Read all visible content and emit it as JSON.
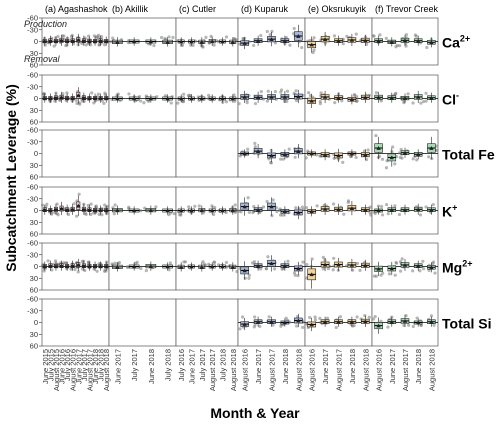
{
  "chart_data": {
    "type": "box",
    "ylabel": "Subcatchment Leverage (%)",
    "xlabel": "Month & Year",
    "yticks": [
      -60,
      -30,
      0,
      30,
      60
    ],
    "ylim": [
      -60,
      60
    ],
    "y_inverted": true,
    "grid": false,
    "annotations": {
      "top": "Production",
      "bottom": "Removal"
    },
    "columns": [
      {
        "title": "(a) Agashashok",
        "x_labels": [
          "June 2015",
          "July 2015",
          "August 2015",
          "June 2016",
          "July 2016",
          "August 2016",
          "June 2017",
          "July 2017",
          "August 2017",
          "June 2018",
          "July 2018",
          "August 2018"
        ]
      },
      {
        "title": "(b) Akillik",
        "x_labels": [
          "June 2017",
          "July 2017",
          "June 2018",
          "July 2018"
        ]
      },
      {
        "title": "(c) Cutler",
        "x_labels": [
          "July 2016",
          "June 2017",
          "July 2017",
          "August 2017",
          "July 2018",
          "August 2018"
        ]
      },
      {
        "title": "(d) Kuparuk",
        "x_labels": [
          "August 2016",
          "June 2017",
          "August 2017",
          "June 2018",
          "August 2018"
        ]
      },
      {
        "title": "(e) Oksrukuyik",
        "x_labels": [
          "August 2016",
          "June 2017",
          "August 2017",
          "June 2018",
          "August 2018"
        ]
      },
      {
        "title": "(f) Trevor Creek",
        "x_labels": [
          "August 2016",
          "June 2017",
          "August 2017",
          "June 2018",
          "August 2018"
        ]
      }
    ],
    "rows": [
      {
        "label": "Ca",
        "sup": "2+"
      },
      {
        "label": "Cl",
        "sup": "-"
      },
      {
        "label": "Total Fe",
        "sup": ""
      },
      {
        "label": "K",
        "sup": "+"
      },
      {
        "label": "Mg",
        "sup": "2+"
      },
      {
        "label": "Total Si",
        "sup": ""
      }
    ],
    "colors": {
      "Agashashok": "#f2c9d0",
      "Akillik": "#d6ecd9",
      "Cutler": "#ffffff",
      "Kuparuk": "#a8b8da",
      "Oksrukuyik": "#f4d39a",
      "Trevor Creek": "#a8dcb5"
    },
    "medians": {
      "Ca": {
        "Agashashok": [
          -1,
          -2,
          -1,
          -3,
          -1,
          -2,
          -4,
          -2,
          -1,
          -1,
          -2,
          -1
        ],
        "Akillik": [
          1,
          0,
          0,
          1
        ],
        "Cutler": [
          0,
          0,
          1,
          -1,
          0,
          1
        ],
        "Kuparuk": [
          4,
          -2,
          -6,
          -2,
          -14
        ],
        "Oksrukuyik": [
          8,
          -6,
          -2,
          -4,
          -3
        ],
        "Trevor Creek": [
          -2,
          1,
          -3,
          -2,
          2
        ]
      },
      "Cl": {
        "Agashashok": [
          -1,
          -1,
          -2,
          -3,
          -1,
          -1,
          -8,
          -2,
          -1,
          -1,
          -1,
          -1
        ],
        "Akillik": [
          0,
          0,
          0,
          0
        ],
        "Cutler": [
          0,
          0,
          0,
          0,
          0,
          0
        ],
        "Kuparuk": [
          -4,
          -3,
          -4,
          -4,
          -5
        ],
        "Oksrukuyik": [
          6,
          -4,
          -2,
          2,
          -3
        ],
        "Trevor Creek": [
          -3,
          -2,
          -1,
          -4,
          -2
        ]
      },
      "Total Fe": {
        "Agashashok": [],
        "Akillik": [],
        "Cutler": [],
        "Kuparuk": [
          0,
          -6,
          5,
          2,
          -6
        ],
        "Oksrukuyik": [
          0,
          3,
          5,
          0,
          3
        ],
        "Trevor Creek": [
          -14,
          10,
          -2,
          2,
          -14
        ]
      },
      "K": {
        "Agashashok": [
          -2,
          -1,
          -3,
          -5,
          -2,
          -3,
          -12,
          -3,
          -2,
          -1,
          -1,
          -1
        ],
        "Akillik": [
          -1,
          0,
          -1,
          0
        ],
        "Cutler": [
          0,
          0,
          -1,
          0,
          0,
          -1
        ],
        "Kuparuk": [
          -10,
          -2,
          -10,
          2,
          5
        ],
        "Oksrukuyik": [
          2,
          -4,
          -3,
          -6,
          -2
        ],
        "Trevor Creek": [
          0,
          -2,
          -2,
          -3,
          -2
        ]
      },
      "Mg": {
        "Agashashok": [
          -1,
          -2,
          -1,
          -2,
          -1,
          -2,
          -4,
          -2,
          -1,
          -1,
          -1,
          -1
        ],
        "Akillik": [
          1,
          0,
          -1,
          0
        ],
        "Cutler": [
          1,
          0,
          1,
          0,
          0,
          1
        ],
        "Kuparuk": [
          10,
          -2,
          -8,
          -2,
          5
        ],
        "Oksrukuyik": [
          20,
          -5,
          -5,
          -4,
          -3
        ],
        "Trevor Creek": [
          6,
          5,
          -4,
          -2,
          2
        ]
      },
      "Total Si": {
        "Agashashok": [],
        "Akillik": [],
        "Cutler": [],
        "Kuparuk": [
          4,
          -2,
          -2,
          0,
          -5
        ],
        "Oksrukuyik": [
          5,
          -2,
          -2,
          -2,
          -3
        ],
        "Trevor Creek": [
          8,
          -2,
          -4,
          0,
          -2
        ]
      }
    }
  }
}
